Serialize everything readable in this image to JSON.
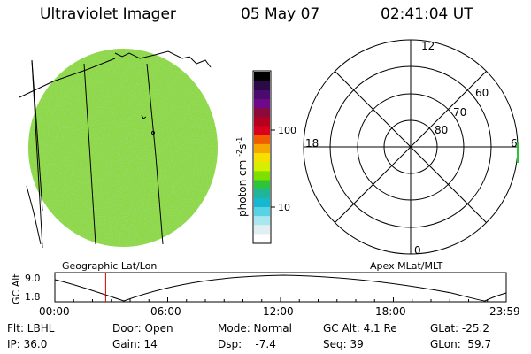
{
  "header": {
    "title": "Ultraviolet Imager",
    "date": "05 May 07",
    "time": "02:41:04 UT"
  },
  "colorbar": {
    "unit_label": "photon cm",
    "unit_exp1": "-2",
    "unit_s": "s",
    "unit_exp2": "-1",
    "tick_labels": [
      "100",
      "10"
    ],
    "colors": [
      "#000000",
      "#2b0a45",
      "#4b0a6e",
      "#6e0a8a",
      "#8a0a3c",
      "#b5001e",
      "#d8001a",
      "#f25c00",
      "#f7a800",
      "#f7e000",
      "#d4f000",
      "#7fe000",
      "#2ec43a",
      "#1fb59a",
      "#16b8d0",
      "#56d4e6",
      "#a9e6ef",
      "#e0f0f2",
      "#ffffff"
    ]
  },
  "left_panel": {
    "label": "Geographic Lat/Lon",
    "disk_color": "#8fd83a"
  },
  "polar_plot": {
    "label": "Apex MLat/MLT",
    "mlt_labels": [
      "12",
      "18",
      "6",
      "0"
    ],
    "lat_labels": [
      "60",
      "70",
      "80"
    ]
  },
  "altitude_plot": {
    "y_label": "GC Alt",
    "y_ticks": [
      "9.0",
      "1.8"
    ],
    "x_ticks": [
      "00:00",
      "06:00",
      "12:00",
      "18:00",
      "23:59"
    ],
    "current_time_fraction": 0.1125,
    "marker_color": "#d00000"
  },
  "info": {
    "row1": [
      "Flt: LBHL",
      "Door: Open",
      "Mode: Normal",
      "GC Alt: 4.1 Re",
      "GLat: -25.2"
    ],
    "row2": [
      "IP: 36.0",
      "Gain: 14",
      "Dsp:    -7.4",
      "Seq: 39",
      "GLon:  59.7"
    ]
  }
}
